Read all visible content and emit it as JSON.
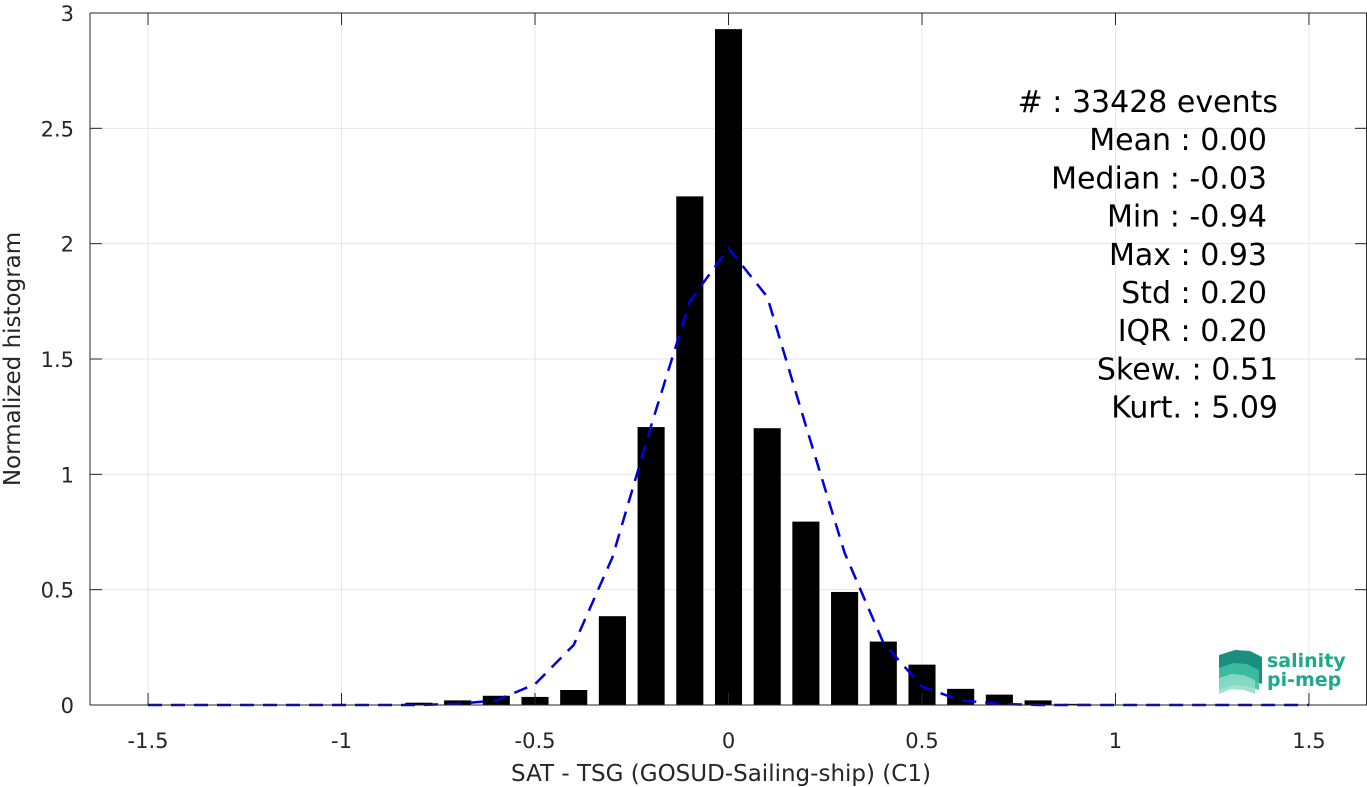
{
  "chart_data": {
    "type": "bar",
    "xlabel": "SAT - TSG (GOSUD-Sailing-ship) (C1)",
    "ylabel": "Normalized histogram",
    "xlim": [
      -1.65,
      1.65
    ],
    "ylim": [
      0,
      3
    ],
    "xticks": [
      -1.5,
      -1,
      -0.5,
      0,
      0.5,
      1,
      1.5
    ],
    "xtick_labels": [
      "-1.5",
      "-1",
      "-0.5",
      "0",
      "0.5",
      "1",
      "1.5"
    ],
    "yticks": [
      0,
      0.5,
      1,
      1.5,
      2,
      2.5,
      3
    ],
    "ytick_labels": [
      "0",
      "0.5",
      "1",
      "1.5",
      "2",
      "2.5",
      "3"
    ],
    "grid": true,
    "bar_width": 0.07,
    "bars": {
      "x": [
        -0.8,
        -0.7,
        -0.6,
        -0.5,
        -0.4,
        -0.3,
        -0.2,
        -0.1,
        0.0,
        0.1,
        0.2,
        0.3,
        0.4,
        0.5,
        0.6,
        0.7,
        0.8,
        0.9
      ],
      "values": [
        0.01,
        0.02,
        0.04,
        0.035,
        0.065,
        0.385,
        1.205,
        2.205,
        2.93,
        1.2,
        0.795,
        0.49,
        0.275,
        0.175,
        0.07,
        0.045,
        0.02,
        0.005
      ],
      "color": "#000000"
    },
    "fit_curve": {
      "style": "dashed",
      "color": "#0000e0",
      "x": [
        -1.5,
        -1.4,
        -1.3,
        -1.2,
        -1.1,
        -1.0,
        -0.9,
        -0.8,
        -0.7,
        -0.6,
        -0.5,
        -0.4,
        -0.3,
        -0.2,
        -0.1,
        0.0,
        0.1,
        0.2,
        0.3,
        0.4,
        0.5,
        0.6,
        0.7,
        0.8,
        0.9,
        1.0,
        1.1,
        1.2,
        1.3,
        1.4,
        1.5
      ],
      "y": [
        0,
        0,
        0,
        0,
        0,
        0,
        0,
        0,
        0.005,
        0.02,
        0.09,
        0.26,
        0.64,
        1.21,
        1.75,
        1.98,
        1.77,
        1.21,
        0.66,
        0.27,
        0.08,
        0.02,
        0.005,
        0,
        0,
        0,
        0,
        0,
        0,
        0,
        0
      ]
    },
    "stats": [
      "#  : 33428 events",
      "Mean : 0.00",
      "Median : -0.03",
      "Min : -0.94",
      "Max : 0.93",
      "Std : 0.20",
      "IQR : 0.20",
      "Skew. : 0.51",
      "Kurt. : 5.09"
    ]
  },
  "logo": {
    "line1": "salinity",
    "line2": "pi-mep",
    "color": "#1fa98c"
  }
}
